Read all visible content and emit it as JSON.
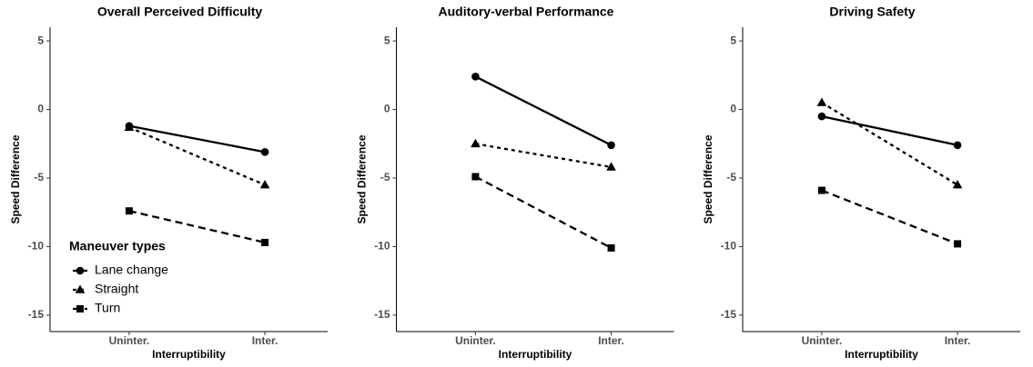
{
  "chart_data": [
    {
      "type": "line",
      "title": "Overall Perceived Difficulty",
      "xlabel": "Interruptibility",
      "ylabel": "Speed Difference",
      "categories": [
        "Uninter.",
        "Inter."
      ],
      "ylim": [
        -16.2,
        6
      ],
      "yticks": [
        5,
        0,
        -5,
        -10,
        -15
      ],
      "legend": {
        "title": "Maneuver types",
        "position": "bottom-left"
      },
      "series": [
        {
          "name": "Lane change",
          "color": "#000000",
          "marker": "circle",
          "dash": "solid",
          "values": [
            -1.2,
            -3.1
          ]
        },
        {
          "name": "Straight",
          "color": "#000000",
          "marker": "triangle",
          "dash": "dotted",
          "values": [
            -1.3,
            -5.5
          ]
        },
        {
          "name": "Turn",
          "color": "#000000",
          "marker": "square",
          "dash": "dashed",
          "values": [
            -7.4,
            -9.7
          ]
        }
      ]
    },
    {
      "type": "line",
      "title": "Auditory-verbal Performance",
      "xlabel": "Interruptibility",
      "ylabel": "Speed Difference",
      "categories": [
        "Uninter.",
        "Inter."
      ],
      "ylim": [
        -16.2,
        6
      ],
      "yticks": [
        5,
        0,
        -5,
        -10,
        -15
      ],
      "series": [
        {
          "color": "#000000",
          "marker": "circle",
          "dash": "solid",
          "values": [
            2.4,
            -2.6
          ]
        },
        {
          "color": "#000000",
          "marker": "triangle",
          "dash": "dotted",
          "values": [
            -2.5,
            -4.2
          ]
        },
        {
          "color": "#000000",
          "marker": "square",
          "dash": "dashed",
          "values": [
            -4.9,
            -10.1
          ]
        }
      ]
    },
    {
      "type": "line",
      "title": "Driving Safety",
      "xlabel": "Interruptibility",
      "ylabel": "Speed Difference",
      "categories": [
        "Uninter.",
        "Inter."
      ],
      "ylim": [
        -16.2,
        6
      ],
      "yticks": [
        5,
        0,
        -5,
        -10,
        -15
      ],
      "series": [
        {
          "color": "#000000",
          "marker": "circle",
          "dash": "solid",
          "values": [
            -0.5,
            -2.6
          ]
        },
        {
          "color": "#000000",
          "marker": "triangle",
          "dash": "dotted",
          "values": [
            0.5,
            -5.5
          ]
        },
        {
          "color": "#000000",
          "marker": "square",
          "dash": "dashed",
          "values": [
            -5.9,
            -9.8
          ]
        }
      ]
    }
  ]
}
